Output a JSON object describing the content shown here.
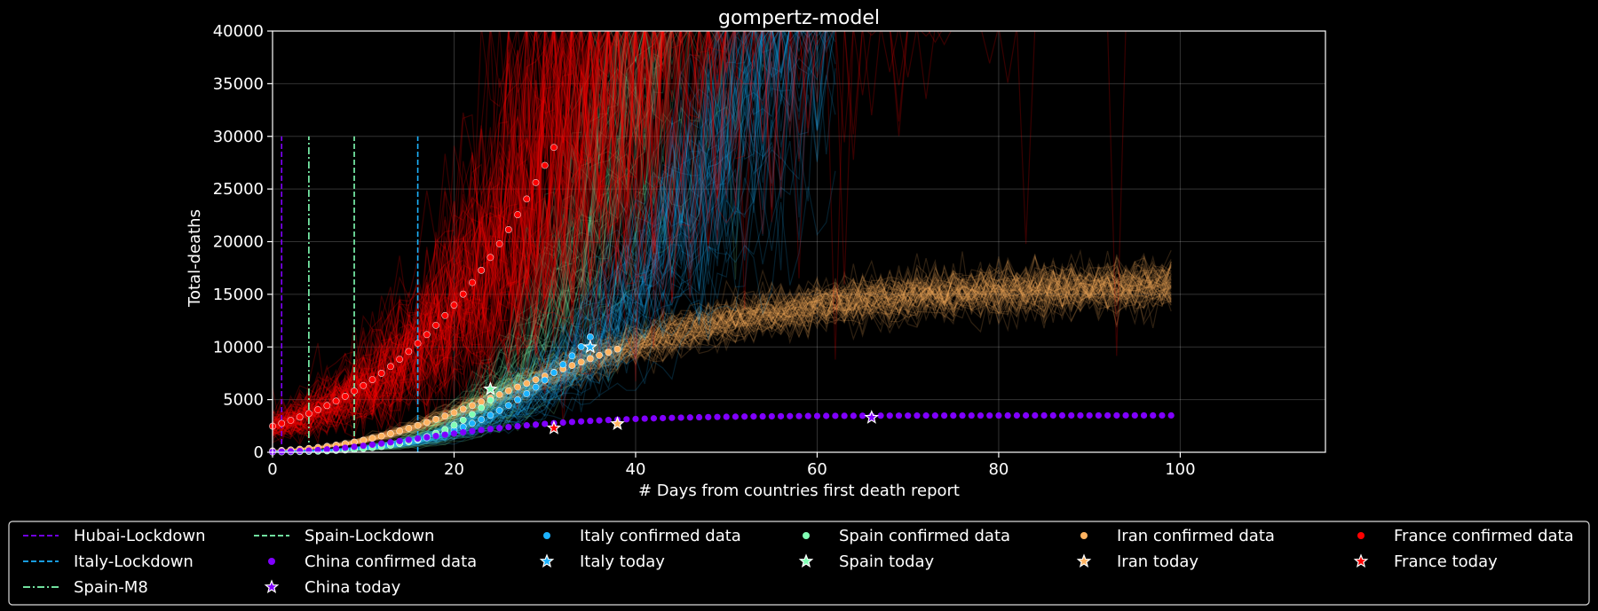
{
  "chart_data": {
    "type": "line",
    "title": "gompertz-model",
    "xlabel": "# Days from countries first death report",
    "ylabel": "Total-deaths",
    "xlim": [
      0,
      116
    ],
    "ylim": [
      0,
      40000
    ],
    "xticks": [
      0,
      20,
      40,
      60,
      80,
      100
    ],
    "yticks": [
      0,
      5000,
      10000,
      15000,
      20000,
      25000,
      30000,
      35000,
      40000
    ],
    "grid": true,
    "legend_placement": "bottom",
    "lockdowns": [
      {
        "name": "Hubai-Lockdown",
        "x": 1,
        "top": 30000,
        "color": "#8000ff",
        "style": "dashed"
      },
      {
        "name": "Italy-Lockdown",
        "x": 16,
        "top": 30000,
        "color": "#1cb3ff",
        "style": "dashed"
      },
      {
        "name": "Spain-M8",
        "x": 4,
        "top": 30000,
        "color": "#80ffb4",
        "style": "dashdot"
      },
      {
        "name": "Spain-Lockdown",
        "x": 9,
        "top": 30000,
        "color": "#80ffb4",
        "style": "dashed"
      }
    ],
    "series": [
      {
        "country": "China",
        "color": "#8000ff",
        "confirmed_label": "China confirmed data",
        "today_label": "China today",
        "model": {
          "a": 3500,
          "b": 4.5,
          "c": 0.095,
          "spread": 0.05,
          "end": 99
        },
        "confirmed_x": [
          0,
          99
        ],
        "today": {
          "x": 66,
          "y": 3300
        }
      },
      {
        "country": "Italy",
        "color": "#1cb3ff",
        "confirmed_label": "Italy confirmed data",
        "today_label": "Italy today",
        "model": {
          "a": 200000,
          "b": 8.3,
          "c": 0.03,
          "spread": 0.35,
          "end": 62
        },
        "confirmed_x": [
          0,
          35
        ],
        "today": {
          "x": 35,
          "y": 10000
        }
      },
      {
        "country": "Spain",
        "color": "#80ffb4",
        "confirmed_label": "Spain confirmed data",
        "today_label": "Spain today",
        "model": {
          "a": 1000000,
          "b": 10.65,
          "c": 0.029,
          "spread": 0.35,
          "end": 55
        },
        "confirmed_x": [
          0,
          24
        ],
        "today": {
          "x": 24,
          "y": 6000
        }
      },
      {
        "country": "Iran",
        "color": "#ffb360",
        "confirmed_label": "Iran confirmed data",
        "today_label": "Iran today",
        "model": {
          "a": 16000,
          "b": 4.8,
          "c": 0.06,
          "spread": 0.18,
          "end": 99
        },
        "confirmed_x": [
          0,
          38
        ],
        "today": {
          "x": 38,
          "y": 2700
        }
      },
      {
        "country": "France",
        "color": "#ff0000",
        "confirmed_label": "France confirmed data",
        "today_label": "France today",
        "model": {
          "a": 1000000,
          "b": 6.0,
          "c": 0.017,
          "spread": 0.6,
          "end": 99
        },
        "confirmed_x": [
          0,
          31
        ],
        "today": {
          "x": 31,
          "y": 2300
        }
      }
    ],
    "legend": [
      {
        "label": "Hubai-Lockdown",
        "kind": "dashed",
        "color": "#8000ff"
      },
      {
        "label": "Italy-Lockdown",
        "kind": "dashed",
        "color": "#1cb3ff"
      },
      {
        "label": "Spain-M8",
        "kind": "dashdot",
        "color": "#80ffb4"
      },
      {
        "label": "Spain-Lockdown",
        "kind": "dashed",
        "color": "#80ffb4"
      },
      {
        "label": "China confirmed data",
        "kind": "dot",
        "color": "#8000ff"
      },
      {
        "label": "China today",
        "kind": "star",
        "color": "#8000ff"
      },
      {
        "label": "Italy confirmed data",
        "kind": "dot",
        "color": "#1cb3ff"
      },
      {
        "label": "Italy today",
        "kind": "star",
        "color": "#1cb3ff"
      },
      {
        "label": "Spain confirmed data",
        "kind": "dot",
        "color": "#80ffb4"
      },
      {
        "label": "Spain today",
        "kind": "star",
        "color": "#80ffb4"
      },
      {
        "label": "Iran confirmed data",
        "kind": "dot",
        "color": "#ffb360"
      },
      {
        "label": "Iran today",
        "kind": "star",
        "color": "#ffb360"
      },
      {
        "label": "France confirmed data",
        "kind": "dot",
        "color": "#ff0000"
      },
      {
        "label": "France today",
        "kind": "star",
        "color": "#ff0000"
      }
    ]
  }
}
